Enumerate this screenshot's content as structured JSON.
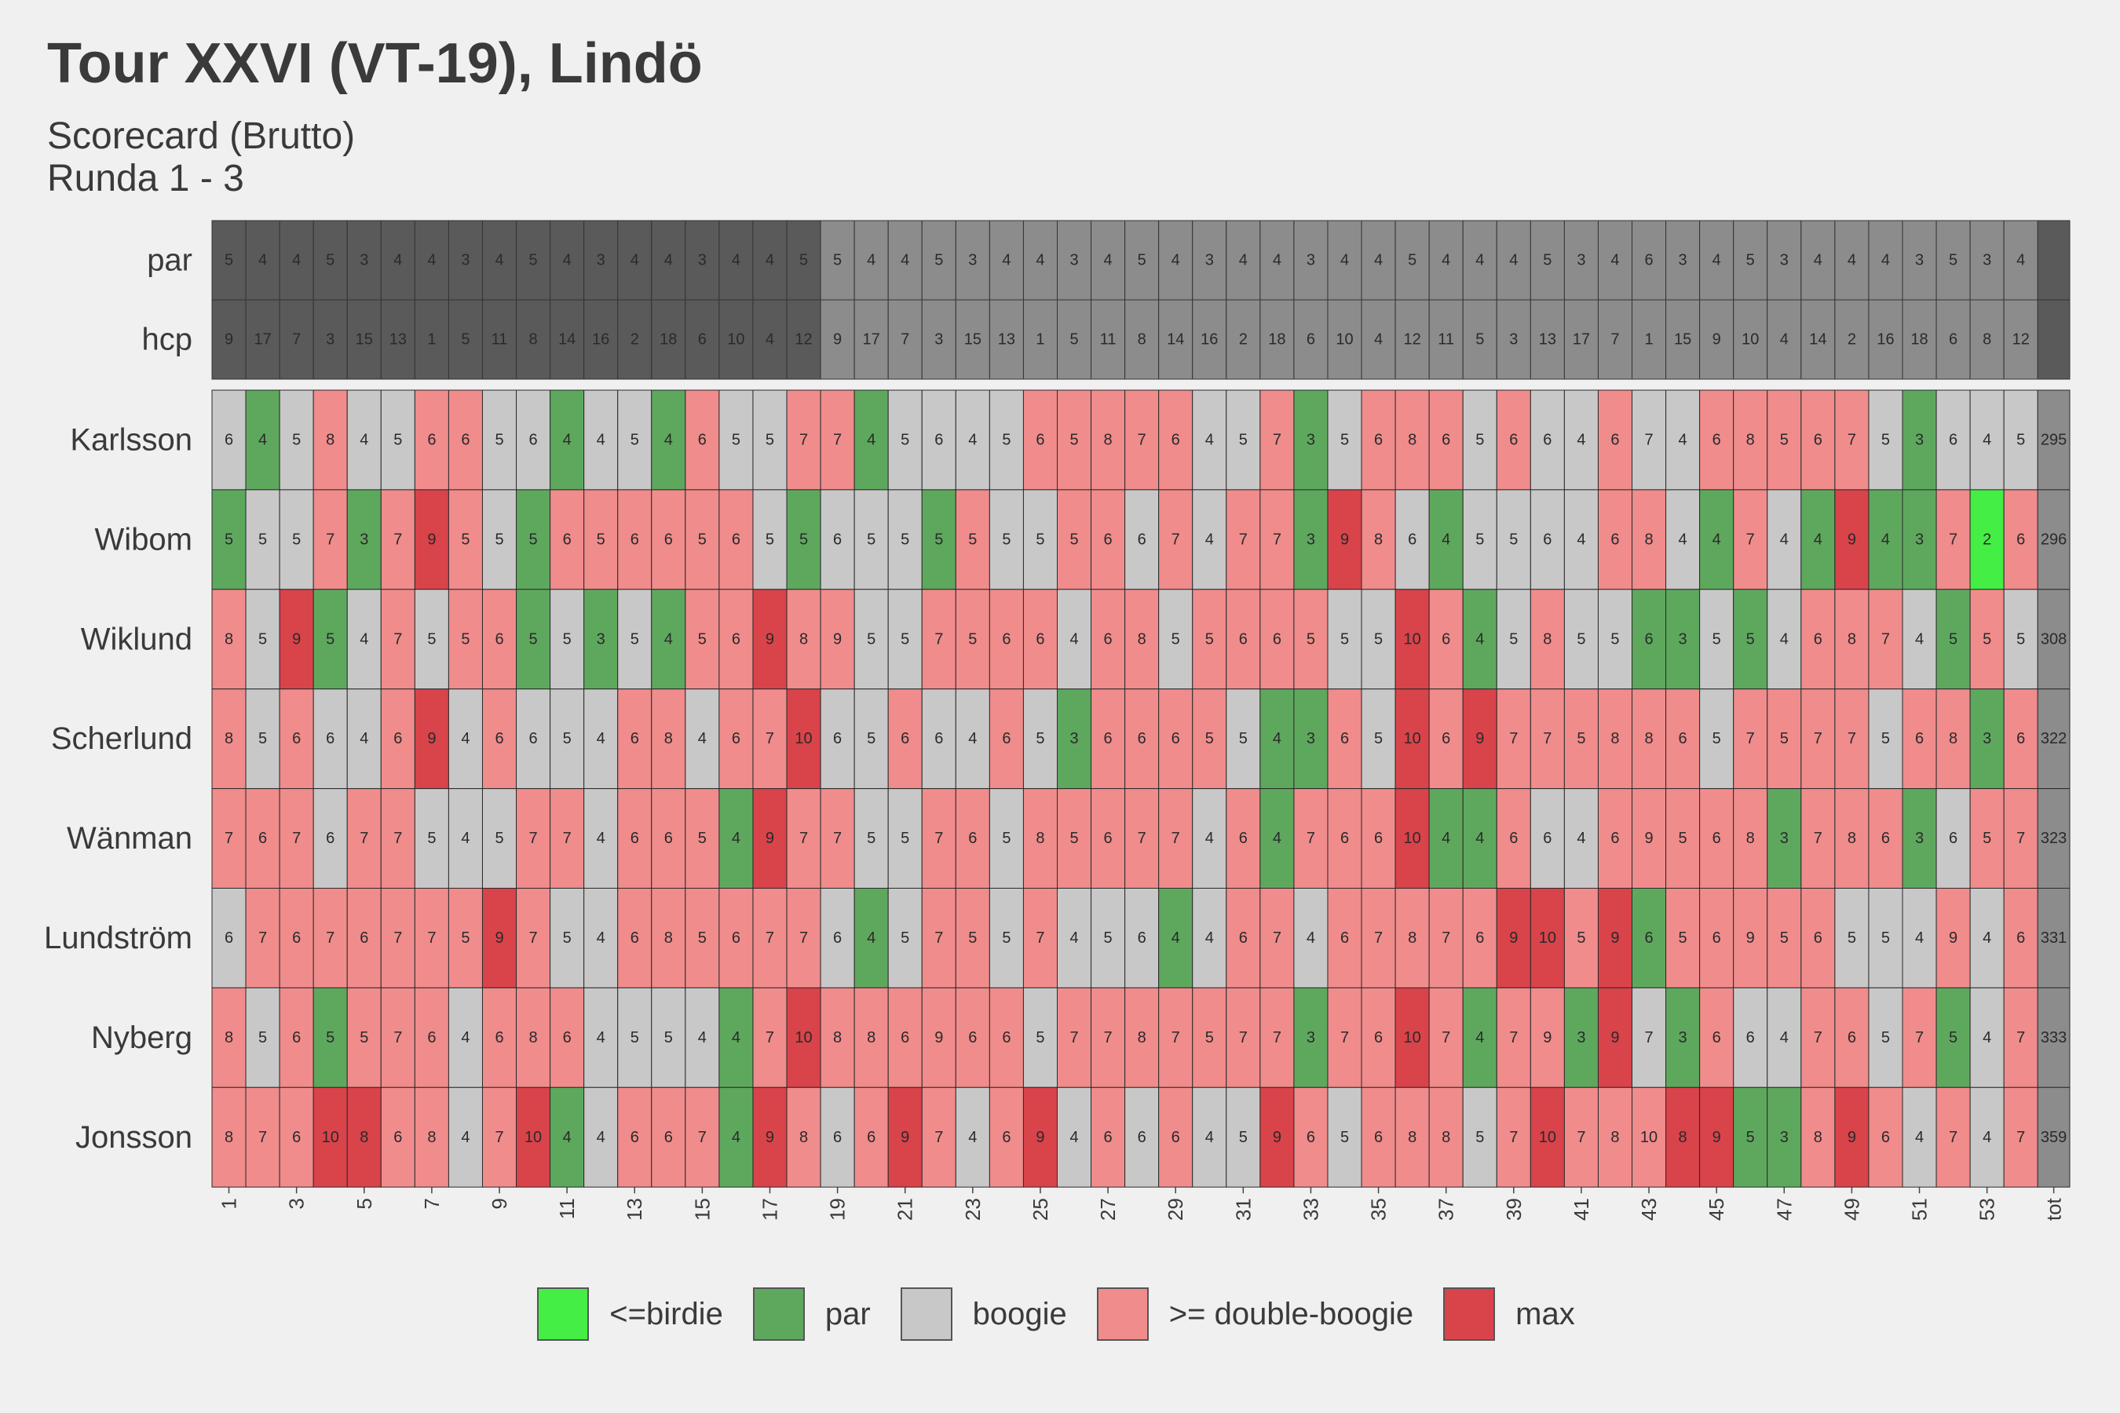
{
  "title": "Tour XXVI (VT-19), Lindö",
  "subtitle_1": "Scorecard (Brutto)",
  "subtitle_2": "Runda 1 - 3",
  "colors": {
    "birdie": "#44ee44",
    "par": "#5ea85e",
    "boogie": "#c8c8c8",
    "double": "#f08c8c",
    "max": "#d9434a",
    "header_dark": "#5a5a5a",
    "header_light": "#8c8c8c",
    "total": "#8c8c8c"
  },
  "legend": [
    {
      "key": "birdie",
      "label": "<=birdie"
    },
    {
      "key": "par",
      "label": "par"
    },
    {
      "key": "boogie",
      "label": "boogie"
    },
    {
      "key": "double",
      "label": ">= double-boogie"
    },
    {
      "key": "max",
      "label": "max"
    }
  ],
  "chart_data": {
    "type": "heatmap",
    "holes": [
      1,
      2,
      3,
      4,
      5,
      6,
      7,
      8,
      9,
      10,
      11,
      12,
      13,
      14,
      15,
      16,
      17,
      18,
      19,
      20,
      21,
      22,
      23,
      24,
      25,
      26,
      27,
      28,
      29,
      30,
      31,
      32,
      33,
      34,
      35,
      36,
      37,
      38,
      39,
      40,
      41,
      42,
      43,
      44,
      45,
      46,
      47,
      48,
      49,
      50,
      51,
      52,
      53,
      54
    ],
    "x_tick_labels": [
      "1",
      "3",
      "5",
      "7",
      "9",
      "11",
      "13",
      "15",
      "17",
      "19",
      "21",
      "23",
      "25",
      "27",
      "29",
      "31",
      "33",
      "35",
      "37",
      "39",
      "41",
      "43",
      "45",
      "47",
      "49",
      "51",
      "53",
      "tot"
    ],
    "par_label": "par",
    "hcp_label": "hcp",
    "par": [
      5,
      4,
      4,
      5,
      3,
      4,
      4,
      3,
      4,
      5,
      4,
      3,
      4,
      4,
      3,
      4,
      4,
      5,
      5,
      4,
      4,
      5,
      3,
      4,
      4,
      3,
      4,
      5,
      4,
      3,
      4,
      4,
      3,
      4,
      4,
      5,
      4,
      4,
      4,
      5,
      3,
      4,
      6,
      3,
      4,
      5,
      3,
      4,
      4,
      4,
      3,
      5,
      3,
      4
    ],
    "hcp": [
      9,
      17,
      7,
      3,
      15,
      13,
      1,
      5,
      11,
      8,
      14,
      16,
      2,
      18,
      6,
      10,
      4,
      12,
      9,
      17,
      7,
      3,
      15,
      13,
      1,
      5,
      11,
      8,
      14,
      16,
      2,
      18,
      6,
      10,
      4,
      12,
      11,
      5,
      3,
      13,
      17,
      7,
      1,
      15,
      9,
      10,
      4,
      14,
      2,
      16,
      18,
      6,
      8,
      12
    ],
    "players": [
      {
        "name": "Karlsson",
        "total": 295,
        "scores": [
          6,
          4,
          5,
          8,
          4,
          5,
          6,
          6,
          5,
          6,
          4,
          4,
          5,
          4,
          6,
          5,
          5,
          7,
          7,
          4,
          5,
          6,
          4,
          5,
          6,
          5,
          8,
          7,
          6,
          4,
          5,
          7,
          3,
          5,
          6,
          8,
          6,
          5,
          6,
          6,
          4,
          6,
          7,
          4,
          6,
          8,
          5,
          6,
          7,
          5,
          3,
          6,
          4,
          5
        ],
        "cats": [
          "B",
          "P",
          "B",
          "D",
          "B",
          "B",
          "D",
          "D",
          "B",
          "B",
          "P",
          "B",
          "B",
          "P",
          "D",
          "B",
          "B",
          "D",
          "D",
          "P",
          "B",
          "B",
          "B",
          "B",
          "D",
          "D",
          "D",
          "D",
          "D",
          "B",
          "B",
          "D",
          "P",
          "B",
          "D",
          "D",
          "D",
          "B",
          "D",
          "B",
          "B",
          "D",
          "B",
          "B",
          "D",
          "D",
          "D",
          "D",
          "D",
          "B",
          "P",
          "B",
          "B",
          "B"
        ]
      },
      {
        "name": "Wibom",
        "total": 296,
        "scores": [
          5,
          5,
          5,
          7,
          3,
          7,
          9,
          5,
          5,
          5,
          6,
          5,
          6,
          6,
          5,
          6,
          5,
          5,
          6,
          5,
          5,
          5,
          5,
          5,
          5,
          5,
          6,
          6,
          7,
          4,
          7,
          7,
          3,
          9,
          8,
          6,
          4,
          5,
          5,
          6,
          4,
          6,
          8,
          4,
          4,
          7,
          4,
          4,
          9,
          4,
          3,
          7,
          2,
          6
        ],
        "cats": [
          "P",
          "B",
          "B",
          "D",
          "P",
          "D",
          "M",
          "D",
          "B",
          "P",
          "D",
          "D",
          "D",
          "D",
          "D",
          "D",
          "B",
          "P",
          "B",
          "B",
          "B",
          "P",
          "D",
          "B",
          "B",
          "D",
          "D",
          "B",
          "D",
          "B",
          "D",
          "D",
          "P",
          "M",
          "D",
          "B",
          "P",
          "B",
          "B",
          "B",
          "B",
          "D",
          "D",
          "B",
          "P",
          "D",
          "B",
          "P",
          "M",
          "P",
          "P",
          "D",
          "I",
          "D"
        ]
      },
      {
        "name": "Wiklund",
        "total": 308,
        "scores": [
          8,
          5,
          9,
          5,
          4,
          7,
          5,
          5,
          6,
          5,
          5,
          3,
          5,
          4,
          5,
          6,
          9,
          8,
          9,
          5,
          5,
          7,
          5,
          6,
          6,
          4,
          6,
          8,
          5,
          5,
          6,
          6,
          5,
          5,
          5,
          10,
          6,
          4,
          5,
          8,
          5,
          5,
          6,
          3,
          5,
          5,
          4,
          6,
          8,
          7,
          4,
          5,
          5,
          5
        ],
        "cats": [
          "D",
          "B",
          "M",
          "P",
          "B",
          "D",
          "B",
          "D",
          "D",
          "P",
          "B",
          "P",
          "B",
          "P",
          "D",
          "D",
          "M",
          "D",
          "D",
          "B",
          "B",
          "D",
          "D",
          "D",
          "D",
          "B",
          "D",
          "D",
          "B",
          "D",
          "D",
          "D",
          "D",
          "B",
          "B",
          "M",
          "D",
          "P",
          "B",
          "D",
          "B",
          "B",
          "P",
          "P",
          "B",
          "P",
          "B",
          "D",
          "D",
          "D",
          "B",
          "P",
          "D",
          "B"
        ]
      },
      {
        "name": "Scherlund",
        "total": 322,
        "scores": [
          8,
          5,
          6,
          6,
          4,
          6,
          9,
          4,
          6,
          6,
          5,
          4,
          6,
          8,
          4,
          6,
          7,
          10,
          6,
          5,
          6,
          6,
          4,
          6,
          5,
          3,
          6,
          6,
          6,
          5,
          5,
          4,
          3,
          6,
          5,
          10,
          6,
          9,
          7,
          7,
          5,
          8,
          8,
          6,
          5,
          7,
          5,
          7,
          7,
          5,
          6,
          8,
          3,
          6
        ],
        "cats": [
          "D",
          "B",
          "D",
          "B",
          "B",
          "D",
          "M",
          "B",
          "D",
          "B",
          "B",
          "B",
          "D",
          "D",
          "B",
          "D",
          "D",
          "M",
          "B",
          "B",
          "D",
          "B",
          "B",
          "D",
          "B",
          "P",
          "D",
          "D",
          "D",
          "D",
          "B",
          "P",
          "P",
          "D",
          "B",
          "M",
          "D",
          "M",
          "D",
          "D",
          "D",
          "D",
          "D",
          "D",
          "B",
          "D",
          "D",
          "D",
          "D",
          "B",
          "D",
          "D",
          "P",
          "D"
        ]
      },
      {
        "name": "Wänman",
        "total": 323,
        "scores": [
          7,
          6,
          7,
          6,
          7,
          7,
          5,
          4,
          5,
          7,
          7,
          4,
          6,
          6,
          5,
          4,
          9,
          7,
          7,
          5,
          5,
          7,
          6,
          5,
          8,
          5,
          6,
          7,
          7,
          4,
          6,
          4,
          7,
          6,
          6,
          10,
          4,
          4,
          6,
          6,
          4,
          6,
          9,
          5,
          6,
          8,
          3,
          7,
          8,
          6,
          3,
          6,
          5,
          7
        ],
        "cats": [
          "D",
          "D",
          "D",
          "B",
          "D",
          "D",
          "B",
          "B",
          "B",
          "D",
          "D",
          "B",
          "D",
          "D",
          "D",
          "P",
          "M",
          "D",
          "D",
          "B",
          "B",
          "D",
          "D",
          "B",
          "D",
          "D",
          "D",
          "D",
          "D",
          "B",
          "D",
          "P",
          "D",
          "D",
          "D",
          "M",
          "P",
          "P",
          "D",
          "B",
          "B",
          "D",
          "D",
          "D",
          "D",
          "D",
          "P",
          "D",
          "D",
          "D",
          "P",
          "B",
          "D",
          "D"
        ]
      },
      {
        "name": "Lundström",
        "total": 331,
        "scores": [
          6,
          7,
          6,
          7,
          6,
          7,
          7,
          5,
          9,
          7,
          5,
          4,
          6,
          8,
          5,
          6,
          7,
          7,
          6,
          4,
          5,
          7,
          5,
          5,
          7,
          4,
          5,
          6,
          4,
          4,
          6,
          7,
          4,
          6,
          7,
          8,
          7,
          6,
          9,
          10,
          5,
          9,
          6,
          5,
          6,
          9,
          5,
          6,
          5,
          5,
          4,
          9,
          4,
          6
        ],
        "cats": [
          "B",
          "D",
          "D",
          "D",
          "D",
          "D",
          "D",
          "D",
          "M",
          "D",
          "B",
          "B",
          "D",
          "D",
          "D",
          "D",
          "D",
          "D",
          "B",
          "P",
          "B",
          "D",
          "D",
          "B",
          "D",
          "B",
          "B",
          "B",
          "P",
          "B",
          "D",
          "D",
          "B",
          "D",
          "D",
          "D",
          "D",
          "D",
          "M",
          "M",
          "D",
          "M",
          "P",
          "D",
          "D",
          "D",
          "D",
          "D",
          "B",
          "B",
          "B",
          "D",
          "B",
          "D"
        ]
      },
      {
        "name": "Nyberg",
        "total": 333,
        "scores": [
          8,
          5,
          6,
          5,
          5,
          7,
          6,
          4,
          6,
          8,
          6,
          4,
          5,
          5,
          4,
          4,
          7,
          10,
          8,
          8,
          6,
          9,
          6,
          6,
          5,
          7,
          7,
          8,
          7,
          5,
          7,
          7,
          3,
          7,
          6,
          10,
          7,
          4,
          7,
          9,
          3,
          9,
          7,
          3,
          6,
          6,
          4,
          7,
          6,
          5,
          7,
          5,
          4,
          7
        ],
        "cats": [
          "D",
          "B",
          "D",
          "P",
          "D",
          "D",
          "D",
          "B",
          "D",
          "D",
          "D",
          "B",
          "B",
          "B",
          "B",
          "P",
          "D",
          "M",
          "D",
          "D",
          "D",
          "D",
          "D",
          "D",
          "B",
          "D",
          "D",
          "D",
          "D",
          "D",
          "D",
          "D",
          "P",
          "D",
          "D",
          "M",
          "D",
          "P",
          "D",
          "D",
          "P",
          "M",
          "B",
          "P",
          "D",
          "B",
          "B",
          "D",
          "D",
          "B",
          "D",
          "P",
          "B",
          "D"
        ]
      },
      {
        "name": "Jonsson",
        "total": 359,
        "scores": [
          8,
          7,
          6,
          10,
          8,
          6,
          8,
          4,
          7,
          10,
          4,
          4,
          6,
          6,
          7,
          4,
          9,
          8,
          6,
          6,
          9,
          7,
          4,
          6,
          9,
          4,
          6,
          6,
          6,
          4,
          5,
          9,
          6,
          5,
          6,
          8,
          8,
          5,
          7,
          10,
          7,
          8,
          10,
          8,
          9,
          5,
          3,
          8,
          9,
          6,
          4,
          7,
          4,
          7
        ],
        "cats": [
          "D",
          "D",
          "D",
          "M",
          "M",
          "D",
          "D",
          "B",
          "D",
          "M",
          "P",
          "B",
          "D",
          "D",
          "D",
          "P",
          "M",
          "D",
          "B",
          "D",
          "M",
          "D",
          "B",
          "D",
          "M",
          "B",
          "D",
          "B",
          "D",
          "B",
          "B",
          "M",
          "D",
          "B",
          "D",
          "D",
          "D",
          "B",
          "D",
          "M",
          "D",
          "D",
          "D",
          "M",
          "M",
          "P",
          "P",
          "D",
          "M",
          "D",
          "B",
          "D",
          "B",
          "D"
        ]
      }
    ]
  }
}
